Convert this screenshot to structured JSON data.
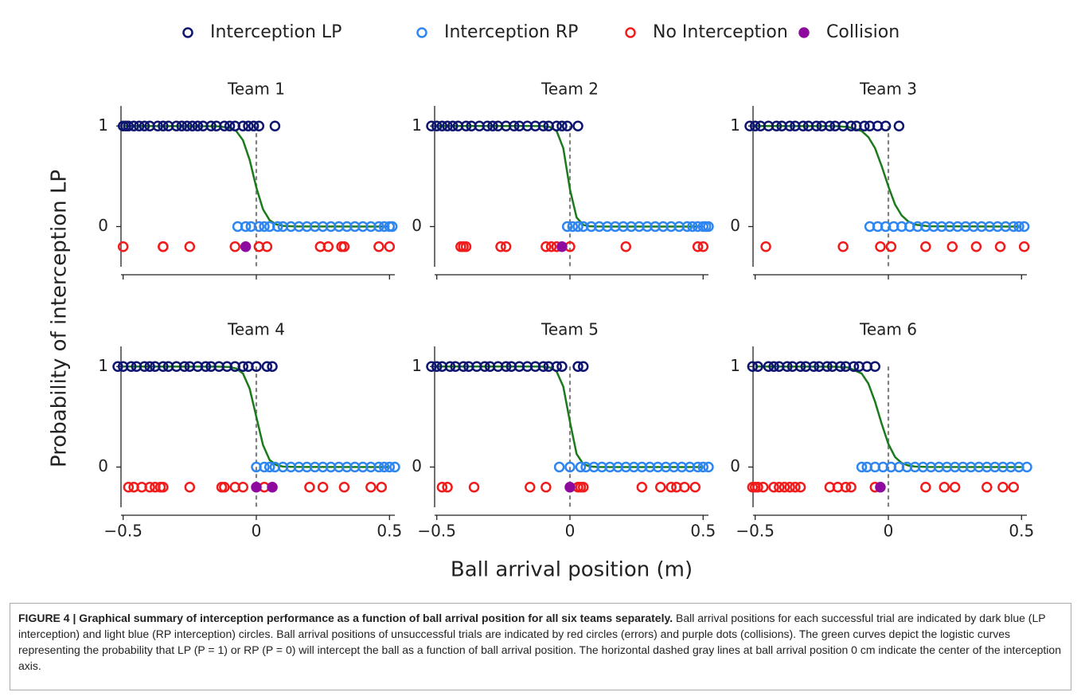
{
  "figure": {
    "ylabel": "Probability of interception LP",
    "xlabel": "Ball arrival position (m)"
  },
  "caption": {
    "label": "FIGURE 4 | Graphical summary of interception performance as a function of ball arrival position for all six teams separately.",
    "text": "Ball arrival positions for each successful trial are indicated by dark blue (LP interception) and light blue (RP interception) circles. Ball arrival positions of unsuccessful trials are indicated by red circles (errors) and purple dots (collisions). The green curves depict the logistic curves representing the probability that LP (P = 1) or RP (P = 0) will intercept the ball as a function of ball arrival position. The horizontal dashed gray lines at ball arrival position 0 cm indicate the center of the interception axis."
  },
  "chart_data": [
    {
      "type": "scatter",
      "title": "Team 1",
      "xlim": [
        -0.52,
        0.52
      ],
      "ylim": [
        -0.4,
        1.2
      ],
      "xticks": [
        -0.5,
        0,
        0.5
      ],
      "yticks": [
        0,
        1
      ],
      "vline": 0,
      "series": [
        {
          "name": "Interception LP",
          "color": "#0d1570",
          "filled": false,
          "y": 1,
          "x": [
            -0.5,
            -0.49,
            -0.48,
            -0.46,
            -0.44,
            -0.42,
            -0.4,
            -0.37,
            -0.35,
            -0.33,
            -0.3,
            -0.28,
            -0.26,
            -0.24,
            -0.22,
            -0.2,
            -0.17,
            -0.15,
            -0.12,
            -0.1,
            -0.08,
            -0.05,
            -0.03,
            -0.01,
            0.01,
            0.07
          ]
        },
        {
          "name": "Interception RP",
          "color": "#2f86f0",
          "filled": false,
          "y": 0,
          "x": [
            -0.07,
            -0.04,
            -0.02,
            0.01,
            0.03,
            0.05,
            0.08,
            0.1,
            0.13,
            0.16,
            0.19,
            0.22,
            0.25,
            0.28,
            0.31,
            0.34,
            0.37,
            0.4,
            0.43,
            0.46,
            0.48,
            0.5,
            0.51
          ]
        },
        {
          "name": "No Interception",
          "color": "#f01c1c",
          "filled": false,
          "y": -0.2,
          "x": [
            -0.5,
            -0.35,
            -0.35,
            -0.25,
            -0.08,
            0.01,
            0.04,
            0.24,
            0.27,
            0.32,
            0.33,
            0.46,
            0.5
          ]
        },
        {
          "name": "Collision",
          "color": "#8e0a9e",
          "filled": true,
          "y": -0.2,
          "x": [
            -0.04
          ]
        }
      ],
      "curve": {
        "color": "#1c7a1c",
        "x": [
          -0.5,
          -0.15,
          -0.1,
          -0.075,
          -0.05,
          -0.025,
          0,
          0.025,
          0.05,
          0.075,
          0.1,
          0.15,
          0.5
        ],
        "values": [
          1,
          0.998,
          0.983,
          0.949,
          0.858,
          0.663,
          0.389,
          0.172,
          0.063,
          0.021,
          0.007,
          0.001,
          0
        ]
      }
    },
    {
      "type": "scatter",
      "title": "Team 2",
      "xlim": [
        -0.52,
        0.52
      ],
      "ylim": [
        -0.4,
        1.2
      ],
      "xticks": [
        -0.5,
        0,
        0.5
      ],
      "yticks": [
        0,
        1
      ],
      "vline": 0,
      "series": [
        {
          "color": "#0d1570",
          "filled": false,
          "y": 1,
          "x": [
            -0.52,
            -0.5,
            -0.48,
            -0.46,
            -0.44,
            -0.42,
            -0.39,
            -0.37,
            -0.34,
            -0.31,
            -0.29,
            -0.27,
            -0.24,
            -0.21,
            -0.19,
            -0.16,
            -0.13,
            -0.1,
            -0.08,
            -0.05,
            -0.03,
            -0.01,
            0.03
          ]
        },
        {
          "color": "#2f86f0",
          "filled": false,
          "y": 0,
          "x": [
            -0.01,
            0.01,
            0.03,
            0.05,
            0.08,
            0.11,
            0.14,
            0.17,
            0.2,
            0.23,
            0.26,
            0.29,
            0.32,
            0.35,
            0.38,
            0.41,
            0.44,
            0.46,
            0.48,
            0.5,
            0.51,
            0.52
          ]
        },
        {
          "color": "#f01c1c",
          "filled": false,
          "y": -0.2,
          "x": [
            -0.41,
            -0.4,
            -0.39,
            -0.26,
            -0.24,
            -0.09,
            -0.07,
            -0.05,
            0,
            0.21,
            0.48,
            0.5
          ]
        },
        {
          "color": "#8e0a9e",
          "filled": true,
          "y": -0.2,
          "x": [
            -0.03
          ]
        }
      ],
      "curve": {
        "color": "#1c7a1c",
        "x": [
          -0.5,
          -0.15,
          -0.1,
          -0.075,
          -0.05,
          -0.025,
          0,
          0.025,
          0.05,
          0.075,
          0.1,
          0.15,
          0.5
        ],
        "values": [
          1,
          1,
          0.999,
          0.99,
          0.95,
          0.78,
          0.37,
          0.09,
          0.016,
          0.003,
          0.001,
          0,
          0
        ]
      }
    },
    {
      "type": "scatter",
      "title": "Team 3",
      "xlim": [
        -0.52,
        0.52
      ],
      "ylim": [
        -0.4,
        1.2
      ],
      "xticks": [
        -0.5,
        0,
        0.5
      ],
      "yticks": [
        0,
        1
      ],
      "vline": 0,
      "series": [
        {
          "color": "#0d1570",
          "filled": false,
          "y": 1,
          "x": [
            -0.52,
            -0.5,
            -0.48,
            -0.45,
            -0.42,
            -0.4,
            -0.37,
            -0.35,
            -0.32,
            -0.3,
            -0.27,
            -0.25,
            -0.22,
            -0.2,
            -0.17,
            -0.14,
            -0.12,
            -0.09,
            -0.07,
            -0.04,
            -0.01,
            0.04
          ]
        },
        {
          "color": "#2f86f0",
          "filled": false,
          "y": 0,
          "x": [
            -0.07,
            -0.04,
            -0.01,
            0.02,
            0.05,
            0.08,
            0.11,
            0.14,
            0.17,
            0.2,
            0.23,
            0.26,
            0.29,
            0.32,
            0.35,
            0.38,
            0.41,
            0.44,
            0.47,
            0.49,
            0.51
          ]
        },
        {
          "color": "#f01c1c",
          "filled": false,
          "y": -0.2,
          "x": [
            -0.46,
            -0.17,
            -0.03,
            0.01,
            0.14,
            0.24,
            0.33,
            0.42,
            0.51
          ]
        },
        {
          "color": "#8e0a9e",
          "filled": true,
          "y": -0.2,
          "x": []
        }
      ],
      "curve": {
        "color": "#1c7a1c",
        "x": [
          -0.5,
          -0.2,
          -0.15,
          -0.1,
          -0.075,
          -0.05,
          -0.025,
          0,
          0.025,
          0.05,
          0.075,
          0.1,
          0.15,
          0.5
        ],
        "values": [
          1,
          0.999,
          0.99,
          0.95,
          0.89,
          0.78,
          0.6,
          0.4,
          0.22,
          0.11,
          0.05,
          0.02,
          0.003,
          0
        ]
      }
    },
    {
      "type": "scatter",
      "title": "Team 4",
      "xlim": [
        -0.52,
        0.52
      ],
      "ylim": [
        -0.4,
        1.2
      ],
      "xticks": [
        {
          "value": -0.5,
          "label": "−0.5"
        },
        0,
        0.5
      ],
      "yticks": [
        0,
        1
      ],
      "vline": 0,
      "series": [
        {
          "color": "#0d1570",
          "filled": false,
          "y": 1,
          "x": [
            -0.52,
            -0.5,
            -0.47,
            -0.45,
            -0.42,
            -0.4,
            -0.38,
            -0.35,
            -0.33,
            -0.3,
            -0.27,
            -0.25,
            -0.22,
            -0.19,
            -0.17,
            -0.14,
            -0.11,
            -0.08,
            -0.05,
            -0.03,
            0,
            0.04,
            0.06
          ]
        },
        {
          "color": "#2f86f0",
          "filled": false,
          "y": 0,
          "x": [
            0,
            0.03,
            0.05,
            0.07,
            0.1,
            0.13,
            0.16,
            0.19,
            0.22,
            0.25,
            0.28,
            0.31,
            0.34,
            0.37,
            0.4,
            0.43,
            0.46,
            0.48,
            0.5,
            0.52
          ]
        },
        {
          "color": "#f01c1c",
          "filled": false,
          "y": -0.2,
          "x": [
            -0.48,
            -0.46,
            -0.43,
            -0.4,
            -0.38,
            -0.36,
            -0.35,
            -0.25,
            -0.13,
            -0.12,
            -0.08,
            -0.05,
            0.03,
            0.2,
            0.25,
            0.33,
            0.43,
            0.47
          ]
        },
        {
          "color": "#8e0a9e",
          "filled": true,
          "y": -0.2,
          "x": [
            0,
            0.06
          ]
        }
      ],
      "curve": {
        "color": "#1c7a1c",
        "x": [
          -0.5,
          -0.15,
          -0.1,
          -0.075,
          -0.05,
          -0.025,
          0,
          0.025,
          0.05,
          0.075,
          0.1,
          0.15,
          0.5
        ],
        "values": [
          1,
          0.999,
          0.995,
          0.98,
          0.93,
          0.78,
          0.5,
          0.22,
          0.07,
          0.02,
          0.005,
          0.001,
          0
        ]
      }
    },
    {
      "type": "scatter",
      "title": "Team 5",
      "xlim": [
        -0.52,
        0.52
      ],
      "ylim": [
        -0.4,
        1.2
      ],
      "xticks": [
        {
          "value": -0.5,
          "label": "−0.5"
        },
        0,
        0.5
      ],
      "yticks": [
        0,
        1
      ],
      "vline": 0,
      "series": [
        {
          "color": "#0d1570",
          "filled": false,
          "y": 1,
          "x": [
            -0.52,
            -0.5,
            -0.48,
            -0.45,
            -0.43,
            -0.4,
            -0.38,
            -0.35,
            -0.32,
            -0.3,
            -0.27,
            -0.24,
            -0.22,
            -0.19,
            -0.16,
            -0.13,
            -0.1,
            -0.08,
            -0.05,
            -0.03,
            0.03,
            0.05
          ]
        },
        {
          "color": "#2f86f0",
          "filled": false,
          "y": 0,
          "x": [
            -0.04,
            0,
            0.04,
            0.06,
            0.09,
            0.12,
            0.15,
            0.18,
            0.21,
            0.24,
            0.27,
            0.3,
            0.33,
            0.36,
            0.39,
            0.42,
            0.45,
            0.48,
            0.5,
            0.52
          ]
        },
        {
          "color": "#f01c1c",
          "filled": false,
          "y": -0.2,
          "x": [
            -0.48,
            -0.46,
            -0.36,
            -0.15,
            -0.09,
            0.03,
            0.04,
            0.05,
            0.27,
            0.34,
            0.38,
            0.4,
            0.43,
            0.47
          ]
        },
        {
          "color": "#8e0a9e",
          "filled": true,
          "y": -0.2,
          "x": [
            0
          ]
        }
      ],
      "curve": {
        "color": "#1c7a1c",
        "x": [
          -0.5,
          -0.15,
          -0.1,
          -0.075,
          -0.05,
          -0.025,
          0,
          0.025,
          0.05,
          0.075,
          0.1,
          0.15,
          0.5
        ],
        "values": [
          1,
          1,
          0.999,
          0.99,
          0.95,
          0.8,
          0.45,
          0.13,
          0.03,
          0.006,
          0.001,
          0,
          0
        ]
      }
    },
    {
      "type": "scatter",
      "title": "Team 6",
      "xlim": [
        -0.52,
        0.52
      ],
      "ylim": [
        -0.4,
        1.2
      ],
      "xticks": [
        {
          "value": -0.5,
          "label": "−0.5"
        },
        0,
        0.5
      ],
      "yticks": [
        0,
        1
      ],
      "vline": 0,
      "series": [
        {
          "color": "#0d1570",
          "filled": false,
          "y": 1,
          "x": [
            -0.51,
            -0.49,
            -0.45,
            -0.43,
            -0.41,
            -0.38,
            -0.36,
            -0.33,
            -0.31,
            -0.28,
            -0.26,
            -0.23,
            -0.21,
            -0.18,
            -0.16,
            -0.13,
            -0.11,
            -0.08,
            -0.05
          ]
        },
        {
          "color": "#2f86f0",
          "filled": false,
          "y": 0,
          "x": [
            -0.1,
            -0.08,
            -0.05,
            -0.02,
            0.01,
            0.04,
            0.07,
            0.1,
            0.13,
            0.16,
            0.19,
            0.22,
            0.25,
            0.28,
            0.31,
            0.34,
            0.37,
            0.4,
            0.43,
            0.46,
            0.49,
            0.52
          ]
        },
        {
          "color": "#f01c1c",
          "filled": false,
          "y": -0.2,
          "x": [
            -0.51,
            -0.5,
            -0.49,
            -0.47,
            -0.43,
            -0.41,
            -0.39,
            -0.37,
            -0.35,
            -0.33,
            -0.22,
            -0.19,
            -0.16,
            -0.14,
            -0.05,
            0.14,
            0.21,
            0.25,
            0.37,
            0.43,
            0.47
          ]
        },
        {
          "color": "#8e0a9e",
          "filled": true,
          "y": -0.2,
          "x": [
            -0.03
          ]
        }
      ],
      "curve": {
        "color": "#1c7a1c",
        "x": [
          -0.5,
          -0.2,
          -0.15,
          -0.1,
          -0.075,
          -0.05,
          -0.025,
          0,
          0.025,
          0.05,
          0.075,
          0.1,
          0.15,
          0.5
        ],
        "values": [
          1,
          0.998,
          0.99,
          0.93,
          0.83,
          0.65,
          0.43,
          0.23,
          0.1,
          0.04,
          0.015,
          0.005,
          0.001,
          0
        ]
      }
    }
  ]
}
